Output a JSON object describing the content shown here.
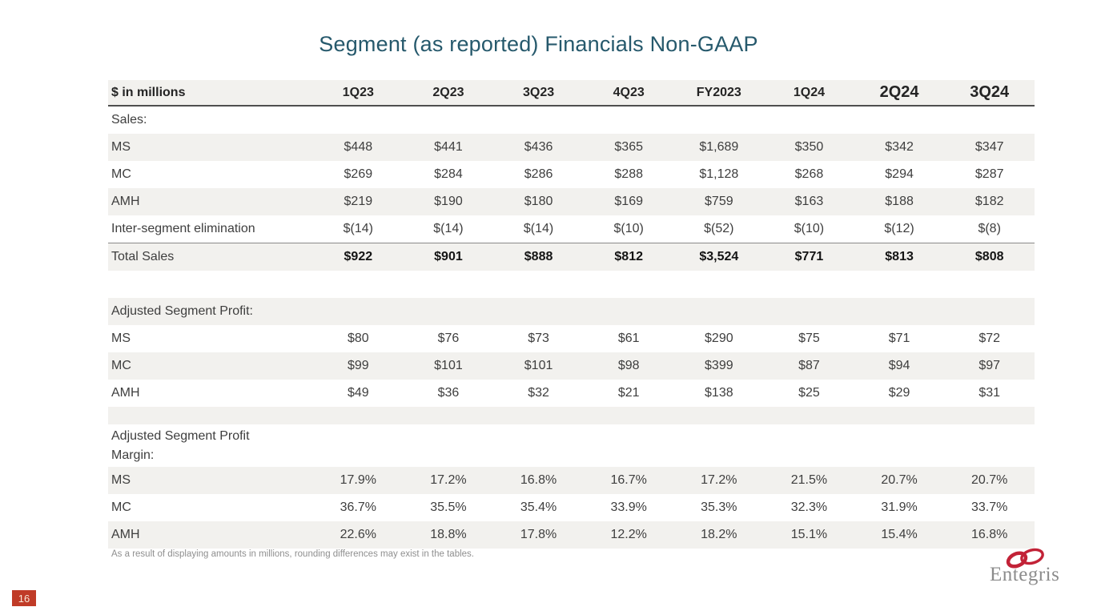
{
  "slide": {
    "title": "Segment (as reported) Financials Non-GAAP",
    "footnote": "As a result of displaying amounts in millions, rounding differences may exist in the tables.",
    "page_number": "16",
    "logo_text": "Entegris"
  },
  "colors": {
    "title_teal": "#26596c",
    "stripe_gray": "#f2f1ee",
    "header_border": "#4f4f4f",
    "page_badge_red": "#c03b27",
    "logo_red": "#c22237",
    "logo_text_gray": "#8c8c8c"
  },
  "table": {
    "header": [
      "$ in millions",
      "1Q23",
      "2Q23",
      "3Q23",
      "4Q23",
      "FY2023",
      "1Q24",
      "2Q24",
      "3Q24"
    ],
    "rows": [
      {
        "label": "Sales:",
        "type": "section",
        "cells": []
      },
      {
        "label": "MS",
        "cells": [
          "$448",
          "$441",
          "$436",
          "$365",
          "$1,689",
          "$350",
          "$342",
          "$347"
        ]
      },
      {
        "label": "MC",
        "cells": [
          "$269",
          "$284",
          "$286",
          "$288",
          "$1,128",
          "$268",
          "$294",
          "$287"
        ]
      },
      {
        "label": "AMH",
        "cells": [
          "$219",
          "$190",
          "$180",
          "$169",
          "$759",
          "$163",
          "$188",
          "$182"
        ]
      },
      {
        "label": "Inter-segment elimination",
        "cells": [
          "$(14)",
          "$(14)",
          "$(14)",
          "$(10)",
          "$(52)",
          "$(10)",
          "$(12)",
          "$(8)"
        ]
      },
      {
        "label": "Total Sales",
        "type": "total",
        "cells": [
          "$922",
          "$901",
          "$888",
          "$812",
          "$3,524",
          "$771",
          "$813",
          "$808"
        ]
      },
      {
        "label": "",
        "type": "spacer",
        "cells": []
      },
      {
        "label": "Adjusted Segment Profit:",
        "type": "section",
        "cells": []
      },
      {
        "label": "MS",
        "cells": [
          "$80",
          "$76",
          "$73",
          "$61",
          "$290",
          "$75",
          "$71",
          "$72"
        ]
      },
      {
        "label": "MC",
        "cells": [
          "$99",
          "$101",
          "$101",
          "$98",
          "$399",
          "$87",
          "$94",
          "$97"
        ]
      },
      {
        "label": "AMH",
        "cells": [
          "$49",
          "$36",
          "$32",
          "$21",
          "$138",
          "$25",
          "$29",
          "$31"
        ]
      },
      {
        "label": "",
        "type": "spacer-thin",
        "cells": []
      },
      {
        "label": "Adjusted Segment Profit Margin:",
        "type": "section-tall",
        "cells": []
      },
      {
        "label": "MS",
        "cells": [
          "17.9%",
          "17.2%",
          "16.8%",
          "16.7%",
          "17.2%",
          "21.5%",
          "20.7%",
          "20.7%"
        ]
      },
      {
        "label": "MC",
        "cells": [
          "36.7%",
          "35.5%",
          "35.4%",
          "33.9%",
          "35.3%",
          "32.3%",
          "31.9%",
          "33.7%"
        ]
      },
      {
        "label": "AMH",
        "cells": [
          "22.6%",
          "18.8%",
          "17.8%",
          "12.2%",
          "18.2%",
          "15.1%",
          "15.4%",
          "16.8%"
        ]
      }
    ]
  }
}
